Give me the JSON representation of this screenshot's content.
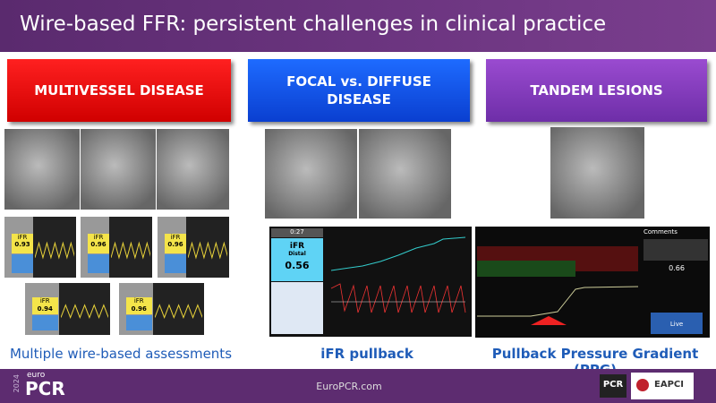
{
  "header": {
    "title": "Wire-based FFR: persistent challenges in clinical practice"
  },
  "panels": [
    {
      "label": "MULTIVESSEL DISEASE",
      "caption": "Multiple wire-based assessments",
      "readings": [
        {
          "label": "iFR",
          "value": 0.93
        },
        {
          "label": "iFR",
          "value": 0.96
        },
        {
          "label": "iFR",
          "value": 0.96
        },
        {
          "label": "iFR",
          "value": 0.94
        },
        {
          "label": "iFR",
          "value": 0.96
        }
      ]
    },
    {
      "label": "FOCAL vs. DIFFUSE DISEASE",
      "caption": "iFR pullback",
      "monitor": {
        "time": "0:27",
        "label": "iFR",
        "sub": "Distal",
        "value": 0.56
      }
    },
    {
      "label": "TANDEM LESIONS",
      "caption": "Pullback Pressure Gradient (PPG)",
      "monitor": {
        "title": "Comments",
        "value": 0.66,
        "button": "Live"
      }
    }
  ],
  "footer": {
    "year": "2024",
    "brand_top": "euro",
    "brand": "PCR",
    "site": "EuroPCR.com",
    "logos": [
      "PCR",
      "EAPCI"
    ]
  }
}
